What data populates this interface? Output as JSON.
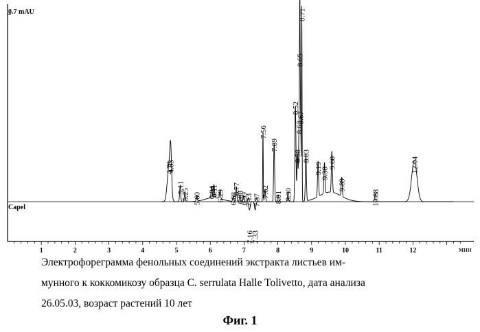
{
  "chart_data": {
    "type": "line",
    "title": "",
    "ylabel": "0.7 mAU",
    "xlabel": "мин",
    "lower_trace_label": "Capel",
    "xlim": [
      0,
      13.5
    ],
    "x_ticks": [
      1,
      2,
      3,
      4,
      5,
      6,
      7,
      8,
      9,
      10,
      11,
      12
    ],
    "grid": false,
    "peaks": [
      {
        "t": 4.78,
        "label": "4.78"
      },
      {
        "t": 4.83,
        "label": "4.83"
      },
      {
        "t": 5.11,
        "label": "5.11"
      },
      {
        "t": 5.25,
        "label": "5.25"
      },
      {
        "t": 5.6,
        "label": "5.60"
      },
      {
        "t": 6.04,
        "label": "6.04"
      },
      {
        "t": 6.11,
        "label": "6.11"
      },
      {
        "t": 6.29,
        "label": "6.29"
      },
      {
        "t": 6.68,
        "label": "6.68"
      },
      {
        "t": 6.77,
        "label": "6.77"
      },
      {
        "t": 6.88,
        "label": "6.88"
      },
      {
        "t": 6.99,
        "label": "6.99"
      },
      {
        "t": 7.13,
        "label": "7.13"
      },
      {
        "t": 7.37,
        "label": "7.37"
      },
      {
        "t": 7.56,
        "label": "7.56"
      },
      {
        "t": 7.62,
        "label": "7.62"
      },
      {
        "t": 7.89,
        "label": "7.89"
      },
      {
        "t": 8.01,
        "label": "8.01"
      },
      {
        "t": 8.3,
        "label": "8.30"
      },
      {
        "t": 8.52,
        "label": "8.52"
      },
      {
        "t": 8.58,
        "label": "8.58"
      },
      {
        "t": 8.63,
        "label": "8.63"
      },
      {
        "t": 8.65,
        "label": "8.65"
      },
      {
        "t": 8.67,
        "label": "8.67"
      },
      {
        "t": 8.71,
        "label": "8.71"
      },
      {
        "t": 8.83,
        "label": "8.83"
      },
      {
        "t": 9.19,
        "label": "9.19"
      },
      {
        "t": 9.38,
        "label": "9.38"
      },
      {
        "t": 9.6,
        "label": "9.60"
      },
      {
        "t": 9.89,
        "label": "9.89"
      },
      {
        "t": 10.88,
        "label": "10.88"
      },
      {
        "t": 12.04,
        "label": "12.04"
      }
    ],
    "negative_peaks": [
      {
        "t": 7.16,
        "label": "7.16"
      },
      {
        "t": 7.33,
        "label": "7.33"
      }
    ]
  },
  "caption": {
    "line1": "Электрофореграмма фенольных соединений экстракта листьев им-",
    "line2": "мунного к коккомикозу образца C. serrulata Halle Tolivetto, дата анализа",
    "line3": "26.05.03, возраст растений 10 лет",
    "figure_label": "Фиг. 1"
  }
}
